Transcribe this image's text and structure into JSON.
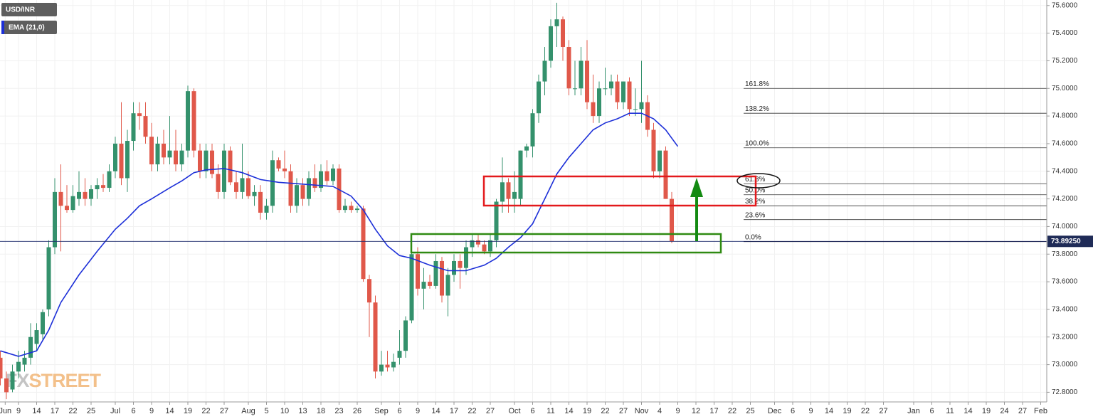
{
  "chart_data": {
    "type": "candlestick",
    "symbol": "USD/INR",
    "watermark": [
      "FX",
      "STREET"
    ],
    "up_color": "#34916c",
    "down_color": "#e0584a",
    "x": [
      -3,
      -2,
      -1,
      0,
      1,
      2,
      3,
      4,
      5,
      6,
      7,
      8,
      9,
      10,
      11,
      12,
      13,
      14,
      15,
      16,
      17,
      18,
      19,
      20,
      21,
      22,
      23,
      24,
      25,
      26,
      27,
      28,
      29,
      30,
      31,
      32,
      33,
      34,
      35,
      36,
      37,
      38,
      39,
      40,
      41,
      42,
      43,
      44,
      45,
      46,
      47,
      48,
      49,
      50,
      51,
      52,
      53,
      54,
      55,
      56,
      57,
      58,
      59,
      60,
      61,
      62,
      63,
      64,
      65,
      66,
      67,
      68,
      69,
      70,
      71,
      72,
      73,
      74,
      75,
      76,
      77,
      78,
      79,
      80,
      81,
      82,
      83,
      84,
      85,
      86,
      87,
      88,
      89,
      90,
      91,
      92,
      93,
      94,
      95,
      96,
      97,
      98,
      99,
      100,
      101,
      102,
      103,
      104,
      105,
      106,
      107,
      108
    ],
    "open": [
      73.05,
      72.9,
      72.82,
      72.95,
      73.0,
      73.05,
      73.15,
      73.22,
      73.4,
      73.85,
      74.25,
      74.15,
      74.12,
      74.2,
      74.25,
      74.2,
      74.27,
      74.3,
      74.28,
      74.4,
      74.6,
      74.35,
      74.62,
      74.82,
      74.8,
      74.65,
      74.45,
      74.6,
      74.5,
      74.55,
      74.45,
      74.55,
      74.98,
      74.55,
      74.4,
      74.55,
      74.38,
      74.25,
      74.55,
      74.32,
      74.25,
      74.35,
      74.22,
      74.25,
      74.1,
      74.15,
      74.48,
      74.42,
      74.4,
      74.15,
      74.3,
      74.2,
      74.35,
      74.28,
      74.4,
      74.33,
      74.42,
      74.12,
      74.15,
      74.12,
      74.13,
      73.62,
      73.45,
      72.95,
      73.0,
      72.98,
      73.05,
      73.1,
      73.32,
      73.8,
      73.55,
      73.6,
      73.57,
      73.75,
      73.5,
      73.65,
      73.75,
      73.7,
      73.85,
      73.9,
      73.87,
      73.82,
      73.9,
      74.18,
      74.32,
      74.2,
      74.2,
      74.55,
      74.58,
      74.82,
      75.05,
      75.2,
      75.45,
      75.5,
      75.3,
      75.0,
      75.0,
      75.2,
      74.9,
      74.8,
      75.0,
      75.0,
      75.05,
      74.9,
      75.05,
      74.85,
      74.85,
      74.9,
      74.7,
      74.4,
      74.55,
      74.2
    ],
    "high": [
      73.1,
      72.95,
      73.0,
      73.1,
      73.1,
      73.3,
      73.3,
      73.4,
      73.9,
      74.35,
      74.45,
      74.3,
      74.3,
      74.4,
      74.35,
      74.3,
      74.35,
      74.38,
      74.45,
      74.65,
      74.9,
      74.7,
      74.9,
      74.9,
      74.9,
      74.75,
      74.65,
      74.7,
      74.8,
      74.7,
      74.6,
      75.02,
      75.0,
      74.6,
      74.6,
      74.6,
      74.45,
      74.6,
      74.58,
      74.4,
      74.6,
      74.4,
      74.3,
      74.3,
      74.2,
      74.55,
      74.5,
      74.55,
      74.45,
      74.35,
      74.35,
      74.4,
      74.45,
      74.45,
      74.48,
      74.45,
      74.45,
      74.2,
      74.18,
      74.15,
      74.15,
      73.65,
      73.5,
      73.1,
      73.1,
      73.08,
      73.25,
      73.35,
      73.85,
      73.85,
      73.7,
      73.65,
      73.8,
      73.78,
      73.7,
      73.8,
      73.8,
      73.9,
      73.95,
      73.95,
      73.9,
      73.95,
      74.2,
      74.5,
      74.35,
      74.4,
      74.55,
      74.6,
      74.85,
      75.1,
      75.3,
      75.5,
      75.62,
      75.52,
      75.35,
      75.2,
      75.3,
      75.35,
      75.1,
      75.05,
      75.15,
      75.1,
      75.1,
      75.05,
      75.08,
      75.0,
      75.2,
      74.95,
      74.75,
      74.55,
      74.58,
      74.25
    ],
    "low": [
      72.85,
      72.75,
      72.8,
      72.9,
      72.95,
      73.0,
      73.1,
      73.18,
      73.35,
      73.8,
      73.82,
      74.1,
      74.1,
      74.15,
      74.15,
      74.15,
      74.2,
      74.25,
      74.25,
      74.35,
      74.3,
      74.25,
      74.55,
      74.7,
      74.6,
      74.4,
      74.4,
      74.45,
      74.45,
      74.4,
      74.4,
      74.5,
      74.5,
      74.35,
      74.35,
      74.35,
      74.2,
      74.2,
      74.3,
      74.2,
      74.2,
      74.2,
      74.15,
      74.05,
      74.05,
      74.1,
      74.4,
      74.35,
      74.1,
      74.1,
      74.15,
      74.15,
      74.25,
      74.25,
      74.3,
      74.3,
      74.1,
      74.1,
      74.1,
      74.1,
      73.6,
      73.2,
      72.9,
      72.92,
      72.95,
      72.95,
      73.0,
      73.05,
      73.3,
      73.5,
      73.4,
      73.55,
      73.55,
      73.45,
      73.35,
      73.6,
      73.55,
      73.65,
      73.78,
      73.85,
      73.8,
      73.78,
      73.85,
      74.1,
      74.1,
      74.1,
      74.15,
      74.5,
      74.5,
      74.75,
      74.95,
      75.15,
      75.3,
      75.2,
      74.95,
      74.95,
      74.95,
      74.85,
      74.75,
      74.75,
      74.95,
      74.95,
      74.85,
      74.85,
      74.8,
      74.8,
      74.75,
      74.65,
      74.35,
      74.35,
      74.2,
      73.88
    ],
    "close": [
      72.9,
      72.8,
      72.95,
      73.02,
      73.05,
      73.2,
      73.25,
      73.38,
      73.85,
      74.25,
      74.15,
      74.12,
      74.22,
      74.25,
      74.2,
      74.27,
      74.3,
      74.28,
      74.4,
      74.6,
      74.35,
      74.62,
      74.82,
      74.8,
      74.65,
      74.45,
      74.6,
      74.5,
      74.55,
      74.45,
      74.55,
      74.98,
      74.55,
      74.4,
      74.55,
      74.38,
      74.25,
      74.55,
      74.32,
      74.25,
      74.35,
      74.22,
      74.25,
      74.1,
      74.15,
      74.48,
      74.42,
      74.4,
      74.15,
      74.3,
      74.2,
      74.35,
      74.28,
      74.4,
      74.33,
      74.42,
      74.12,
      74.15,
      74.12,
      74.13,
      73.62,
      73.45,
      72.95,
      73.0,
      72.98,
      73.02,
      73.1,
      73.32,
      73.8,
      73.55,
      73.6,
      73.57,
      73.75,
      73.5,
      73.65,
      73.75,
      73.7,
      73.85,
      73.9,
      73.87,
      73.82,
      73.9,
      74.18,
      74.32,
      74.2,
      74.25,
      74.55,
      74.58,
      74.82,
      75.05,
      75.2,
      75.45,
      75.5,
      75.3,
      75.0,
      75.0,
      75.2,
      74.9,
      74.8,
      75.0,
      75.0,
      75.05,
      74.9,
      75.05,
      74.85,
      74.85,
      74.9,
      74.7,
      74.4,
      74.55,
      74.2,
      73.8925
    ],
    "ema": {
      "name": "EMA (21,0)",
      "color": "#1c2fd8",
      "x": [
        -3,
        0,
        3,
        5,
        7,
        10,
        13,
        16,
        18,
        20,
        22,
        25,
        27,
        29,
        31,
        34,
        37,
        40,
        43,
        46,
        49,
        52,
        55,
        57,
        59,
        61,
        63,
        65,
        68,
        71,
        74,
        77,
        79,
        81,
        83,
        85,
        87,
        89,
        91,
        93,
        95,
        97,
        99,
        101,
        103,
        105,
        107,
        109
      ],
      "values": [
        73.1,
        73.06,
        73.1,
        73.25,
        73.45,
        73.65,
        73.82,
        73.98,
        74.06,
        74.15,
        74.2,
        74.28,
        74.33,
        74.39,
        74.41,
        74.42,
        74.39,
        74.34,
        74.32,
        74.31,
        74.3,
        74.29,
        74.22,
        74.12,
        73.98,
        73.86,
        73.79,
        73.77,
        73.72,
        73.68,
        73.68,
        73.72,
        73.77,
        73.85,
        73.92,
        74.02,
        74.2,
        74.38,
        74.5,
        74.6,
        74.7,
        74.75,
        74.78,
        74.82,
        74.82,
        74.78,
        74.7,
        74.58
      ]
    },
    "last_price": {
      "value": 73.8925,
      "label": "73.89250"
    },
    "fib_levels": [
      {
        "value": 75.0,
        "label": "161.8%"
      },
      {
        "value": 74.82,
        "label": "138.2%"
      },
      {
        "value": 74.57,
        "label": "100.0%"
      },
      {
        "value": 74.31,
        "label": "61.8%"
      },
      {
        "value": 74.23,
        "label": "50.0%"
      },
      {
        "value": 74.15,
        "label": "38.2%"
      },
      {
        "value": 74.05,
        "label": "23.6%"
      },
      {
        "value": 73.89,
        "label": "0.0%"
      }
    ],
    "ylim": [
      72.73,
      75.64
    ],
    "yticks": [
      {
        "value": 72.8,
        "label": "72.8000"
      },
      {
        "value": 73.0,
        "label": "73.0000"
      },
      {
        "value": 73.2,
        "label": "73.2000"
      },
      {
        "value": 73.4,
        "label": "73.4000"
      },
      {
        "value": 73.6,
        "label": "73.6000"
      },
      {
        "value": 73.8,
        "label": "73.8000"
      },
      {
        "value": 74.0,
        "label": "74.0000"
      },
      {
        "value": 74.2,
        "label": "74.2000"
      },
      {
        "value": 74.4,
        "label": "74.4000"
      },
      {
        "value": 74.6,
        "label": "74.6000"
      },
      {
        "value": 74.8,
        "label": "74.8000"
      },
      {
        "value": 75.0,
        "label": "75.0000"
      },
      {
        "value": 75.2,
        "label": "75.2000"
      },
      {
        "value": 75.4,
        "label": "75.4000"
      },
      {
        "value": 75.6,
        "label": "75.6000"
      }
    ],
    "xlim": [
      -3.06,
      170
    ],
    "xticks": [
      {
        "value": -2.2,
        "label": "Jun"
      },
      {
        "value": 0,
        "label": "9"
      },
      {
        "value": 3,
        "label": "14"
      },
      {
        "value": 6,
        "label": "17"
      },
      {
        "value": 9,
        "label": "22"
      },
      {
        "value": 12,
        "label": "25"
      },
      {
        "value": 16,
        "label": "Jul"
      },
      {
        "value": 19,
        "label": "6"
      },
      {
        "value": 22,
        "label": "9"
      },
      {
        "value": 25,
        "label": "14"
      },
      {
        "value": 28,
        "label": "19"
      },
      {
        "value": 31,
        "label": "22"
      },
      {
        "value": 34,
        "label": "27"
      },
      {
        "value": 38,
        "label": "Aug"
      },
      {
        "value": 41,
        "label": "5"
      },
      {
        "value": 44,
        "label": "10"
      },
      {
        "value": 47,
        "label": "13"
      },
      {
        "value": 50,
        "label": "18"
      },
      {
        "value": 53,
        "label": "23"
      },
      {
        "value": 56,
        "label": "26"
      },
      {
        "value": 60,
        "label": "Sep"
      },
      {
        "value": 63,
        "label": "6"
      },
      {
        "value": 66,
        "label": "9"
      },
      {
        "value": 69,
        "label": "14"
      },
      {
        "value": 72,
        "label": "17"
      },
      {
        "value": 75,
        "label": "22"
      },
      {
        "value": 78,
        "label": "27"
      },
      {
        "value": 82,
        "label": "Oct"
      },
      {
        "value": 85,
        "label": "6"
      },
      {
        "value": 88,
        "label": "11"
      },
      {
        "value": 91,
        "label": "14"
      },
      {
        "value": 94,
        "label": "19"
      },
      {
        "value": 97,
        "label": "22"
      },
      {
        "value": 100,
        "label": "27"
      },
      {
        "value": 103,
        "label": "Nov"
      },
      {
        "value": 106,
        "label": "4"
      },
      {
        "value": 109,
        "label": "9"
      },
      {
        "value": 112,
        "label": "12"
      },
      {
        "value": 115,
        "label": "17"
      },
      {
        "value": 118,
        "label": "22"
      },
      {
        "value": 121,
        "label": "25"
      },
      {
        "value": 125,
        "label": "Dec"
      },
      {
        "value": 128,
        "label": "6"
      },
      {
        "value": 131,
        "label": "9"
      },
      {
        "value": 134,
        "label": "14"
      },
      {
        "value": 137,
        "label": "19"
      },
      {
        "value": 140,
        "label": "22"
      },
      {
        "value": 143,
        "label": "27"
      },
      {
        "value": 148,
        "label": "Jan"
      },
      {
        "value": 151,
        "label": "6"
      },
      {
        "value": 154,
        "label": "11"
      },
      {
        "value": 157,
        "label": "14"
      },
      {
        "value": 160,
        "label": "19"
      },
      {
        "value": 163,
        "label": "24"
      },
      {
        "value": 166,
        "label": "27"
      },
      {
        "value": 169,
        "label": "Feb"
      }
    ],
    "grid": true
  }
}
